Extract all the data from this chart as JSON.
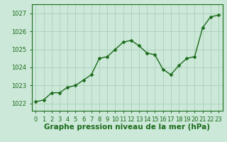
{
  "x": [
    0,
    1,
    2,
    3,
    4,
    5,
    6,
    7,
    8,
    9,
    10,
    11,
    12,
    13,
    14,
    15,
    16,
    17,
    18,
    19,
    20,
    21,
    22,
    23
  ],
  "y": [
    1022.1,
    1022.2,
    1022.6,
    1022.6,
    1022.9,
    1023.0,
    1023.3,
    1023.6,
    1024.5,
    1024.6,
    1025.0,
    1025.4,
    1025.5,
    1025.2,
    1024.8,
    1024.7,
    1023.9,
    1023.6,
    1024.1,
    1024.5,
    1024.6,
    1026.2,
    1026.8,
    1026.9
  ],
  "line_color": "#1a6b1a",
  "marker": "D",
  "marker_size": 2.5,
  "line_width": 1.0,
  "bg_color": "#cce8d8",
  "grid_color": "#aacfbb",
  "ylabel_ticks": [
    1022,
    1023,
    1024,
    1025,
    1026,
    1027
  ],
  "ylim": [
    1021.6,
    1027.5
  ],
  "xlim": [
    -0.5,
    23.5
  ],
  "xlabel": "Graphe pression niveau de la mer (hPa)",
  "xlabel_fontsize": 7.5,
  "tick_fontsize": 6.0,
  "axis_color": "#1a6b1a",
  "spine_color": "#1a6b1a"
}
